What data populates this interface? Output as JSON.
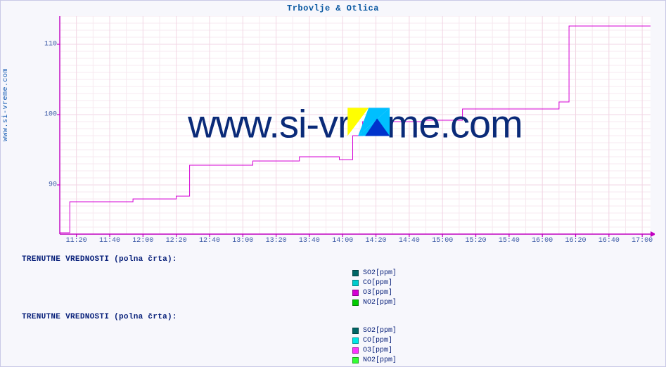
{
  "title": "Trbovlje & Otlica",
  "ylabel": "www.si-vreme.com",
  "watermark_text_left": "www.si-vr",
  "watermark_text_right": "me.com",
  "chart": {
    "type": "line",
    "background_color": "#ffffff",
    "frame_color": "#f7f7fc",
    "grid_major_color": "#f2d6e4",
    "grid_minor_color": "#f7e9f0",
    "axis_color": "#c000c0",
    "x_labels": [
      "11:20",
      "11:40",
      "12:00",
      "12:20",
      "12:40",
      "13:00",
      "13:20",
      "13:40",
      "14:00",
      "14:20",
      "14:40",
      "15:00",
      "15:20",
      "15:40",
      "16:00",
      "16:20",
      "16:40",
      "17:00"
    ],
    "x_minutes": [
      680,
      700,
      720,
      740,
      760,
      780,
      800,
      820,
      840,
      860,
      880,
      900,
      920,
      940,
      960,
      980,
      1000,
      1020
    ],
    "x_range": [
      670,
      1025
    ],
    "y_labels": [
      "90",
      "100",
      "110"
    ],
    "y_ticks": [
      90,
      100,
      110
    ],
    "y_range": [
      83,
      114
    ],
    "y_minor_step": 1,
    "series": {
      "name": "O3[ppm]",
      "color": "#d400d4",
      "line_width": 1,
      "points": [
        [
          670,
          83.2
        ],
        [
          676,
          83.2
        ],
        [
          676,
          87.6
        ],
        [
          714,
          87.6
        ],
        [
          714,
          88.0
        ],
        [
          740,
          88.0
        ],
        [
          740,
          88.4
        ],
        [
          748,
          88.4
        ],
        [
          748,
          92.8
        ],
        [
          786,
          92.8
        ],
        [
          786,
          93.4
        ],
        [
          814,
          93.4
        ],
        [
          814,
          94.0
        ],
        [
          838,
          94.0
        ],
        [
          838,
          93.6
        ],
        [
          846,
          93.6
        ],
        [
          846,
          97.0
        ],
        [
          852,
          97.0
        ],
        [
          852,
          99.0
        ],
        [
          888,
          99.0
        ],
        [
          888,
          99.2
        ],
        [
          912,
          99.2
        ],
        [
          912,
          100.8
        ],
        [
          970,
          100.8
        ],
        [
          970,
          101.8
        ],
        [
          976,
          101.8
        ],
        [
          976,
          112.6
        ],
        [
          1025,
          112.6
        ]
      ]
    }
  },
  "legends": [
    {
      "title": "TRENUTNE VREDNOSTI (polna črta):",
      "items": [
        {
          "label": "SO2[ppm]",
          "color": "#006666"
        },
        {
          "label": "CO[ppm]",
          "color": "#00cccc"
        },
        {
          "label": "O3[ppm]",
          "color": "#d400d4"
        },
        {
          "label": "NO2[ppm]",
          "color": "#00cc00"
        }
      ]
    },
    {
      "title": "TRENUTNE VREDNOSTI (polna črta):",
      "items": [
        {
          "label": "SO2[ppm]",
          "color": "#006666"
        },
        {
          "label": "CO[ppm]",
          "color": "#00e6e6"
        },
        {
          "label": "O3[ppm]",
          "color": "#ff33ff"
        },
        {
          "label": "NO2[ppm]",
          "color": "#33ff33"
        }
      ]
    }
  ],
  "logo_colors": {
    "a": "#ffff00",
    "b": "#00bfff",
    "c": "#0033cc"
  }
}
